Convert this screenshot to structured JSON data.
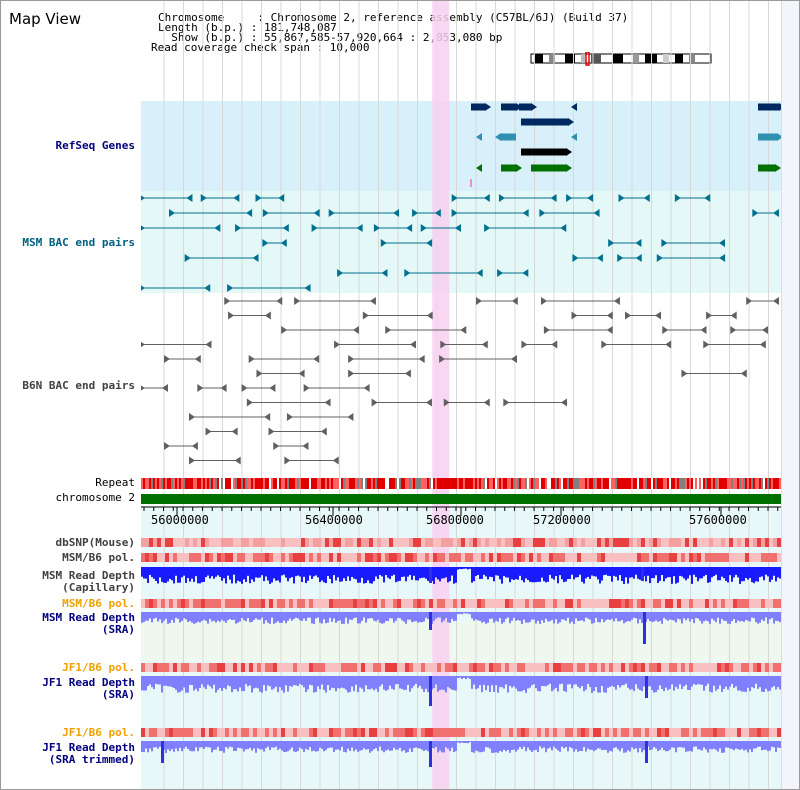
{
  "window": {
    "title": "Map View"
  },
  "info": {
    "line1": "Chromosome     : Chromosome 2, reference assembly (C57BL/6J) (Build 37)",
    "line2": "Length (b.p.) : 181,748,087",
    "line3": "  Show (b.p.) : 55,867,585-57,920,664 : 2,053,080 bp",
    "line4": "Read coverage check span : 10,000"
  },
  "tracks": {
    "refseq": "RefSeq Genes",
    "msm_bac": "MSM BAC end pairs",
    "b6n_bac": "B6N BAC end pairs",
    "repeat": "Repeat",
    "chromosome": "chromosome 2",
    "dbsnp": "dbSNP(Mouse)",
    "msm_b6_pol": "MSM/B6 pol.",
    "msm_depth_cap_1": "MSM Read Depth",
    "msm_depth_cap_2": "(Capillary)",
    "msm_b6_pol_2": "MSM/B6 pol.",
    "msm_depth_sra_1": "MSM Read Depth",
    "msm_depth_sra_2": "(SRA)",
    "jf1_b6_pol": "JF1/B6 pol.",
    "jf1_depth_sra_1": "JF1 Read Depth",
    "jf1_depth_sra_2": "(SRA)",
    "jf1_b6_pol_2": "JF1/B6 pol.",
    "jf1_depth_trim_1": "JF1 Read Depth",
    "jf1_depth_trim_2": "(SRA trimmed)"
  },
  "axis": {
    "ticks": [
      "56000000",
      "56400000",
      "56800000",
      "57200000",
      "57600000"
    ]
  },
  "colors": {
    "label_blue": "#000080",
    "label_teal": "#006080",
    "label_orange": "#f0a000",
    "label_gray": "#404040",
    "refseq_bg": "#d8f0fa",
    "msm_bg": "#e4f8f8",
    "highlight": "#f8d0f0",
    "chrom_green": "#007000",
    "depth_blue": "#1a1aff",
    "depth_light": "#8080ff",
    "pol_red": "#f07070"
  },
  "highlight": {
    "start_bp": 56802000,
    "end_bp": 56827000
  }
}
